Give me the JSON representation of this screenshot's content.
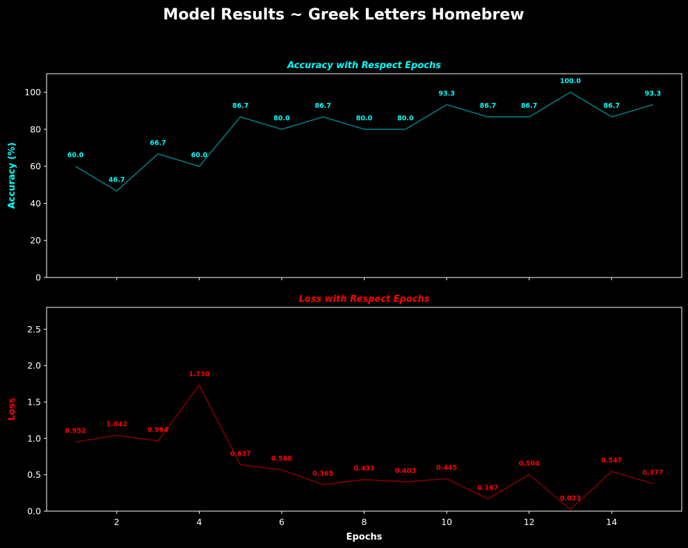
{
  "figure": {
    "title": "Model Results ~ Greek Letters Homebrew"
  },
  "chart_data": [
    {
      "type": "line",
      "title": "Accuracy with Respect Epochs",
      "xlabel": "",
      "ylabel": "Accuracy (%)",
      "color": "#00ffff",
      "line_color": "#007b80",
      "x": [
        1,
        2,
        3,
        4,
        5,
        6,
        7,
        8,
        9,
        10,
        11,
        12,
        13,
        14,
        15
      ],
      "values": [
        60.0,
        46.7,
        66.7,
        60.0,
        86.7,
        80.0,
        86.7,
        80.0,
        80.0,
        93.3,
        86.7,
        86.7,
        100.0,
        86.7,
        93.3
      ],
      "labels": [
        "60.0",
        "46.7",
        "66.7",
        "60.0",
        "86.7",
        "80.0",
        "86.7",
        "80.0",
        "80.0",
        "93.3",
        "86.7",
        "86.7",
        "100.0",
        "86.7",
        "93.3"
      ],
      "xlim": [
        0.3,
        15.7
      ],
      "ylim": [
        0,
        110
      ],
      "yticks": [
        0,
        20,
        40,
        60,
        80,
        100
      ],
      "ytick_labels": [
        "0",
        "20",
        "40",
        "60",
        "80",
        "100"
      ],
      "xticks": [
        2,
        4,
        6,
        8,
        10,
        12,
        14
      ],
      "xtick_labels": [
        "",
        "",
        "",
        "",
        "",
        "",
        ""
      ],
      "grid": false
    },
    {
      "type": "line",
      "title": "Loss with Respect Epochs",
      "xlabel": "Epochs",
      "ylabel": "Loss",
      "color": "#ff0000",
      "line_color": "#800000",
      "x": [
        1,
        2,
        3,
        4,
        5,
        6,
        7,
        8,
        9,
        10,
        11,
        12,
        13,
        14,
        15
      ],
      "values": [
        0.952,
        1.042,
        0.964,
        1.73,
        0.637,
        0.568,
        0.365,
        0.433,
        0.403,
        0.445,
        0.167,
        0.504,
        0.023,
        0.547,
        0.377
      ],
      "labels": [
        "0.952",
        "1.042",
        "0.964",
        "1.730",
        "0.637",
        "0.568",
        "0.365",
        "0.433",
        "0.403",
        "0.445",
        "0.167",
        "0.504",
        "0.023",
        "0.547",
        "0.377"
      ],
      "xlim": [
        0.3,
        15.7
      ],
      "ylim": [
        0,
        2.8
      ],
      "yticks": [
        0,
        0.5,
        1.0,
        1.5,
        2.0,
        2.5
      ],
      "ytick_labels": [
        "0.0",
        "0.5",
        "1.0",
        "1.5",
        "2.0",
        "2.5"
      ],
      "xticks": [
        2,
        4,
        6,
        8,
        10,
        12,
        14
      ],
      "xtick_labels": [
        "2",
        "4",
        "6",
        "8",
        "10",
        "12",
        "14"
      ],
      "grid": false
    }
  ]
}
